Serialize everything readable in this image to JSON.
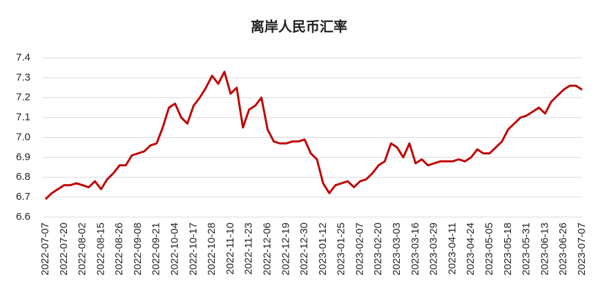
{
  "chart_data": {
    "type": "line",
    "title": "离岸人民币汇率",
    "categories": [
      "2022-07-07",
      null,
      null,
      "2022-07-20",
      null,
      null,
      "2022-08-02",
      null,
      null,
      "2022-08-15",
      null,
      null,
      "2022-08-26",
      null,
      null,
      "2022-09-08",
      null,
      null,
      "2022-09-21",
      null,
      null,
      "2022-10-04",
      null,
      null,
      "2022-10-17",
      null,
      null,
      "2022-10-28",
      null,
      null,
      "2022-11-10",
      null,
      null,
      "2022-11-23",
      null,
      null,
      "2022-12-06",
      null,
      null,
      "2022-12-19",
      null,
      null,
      "2022-12-30",
      null,
      null,
      "2023-01-12",
      null,
      null,
      "2023-01-25",
      null,
      null,
      "2023-02-07",
      null,
      null,
      "2023-02-20",
      null,
      null,
      "2023-03-03",
      null,
      null,
      "2023-03-16",
      null,
      null,
      "2023-03-29",
      null,
      null,
      "2023-04-11",
      null,
      null,
      "2023-04-24",
      null,
      null,
      "2023-05-05",
      null,
      null,
      "2023-05-18",
      null,
      null,
      "2023-05-31",
      null,
      null,
      "2023-06-13",
      null,
      null,
      "2023-06-26",
      null,
      null,
      "2023-07-07"
    ],
    "series": [
      {
        "color": "#c00000",
        "values": [
          6.69,
          6.72,
          6.74,
          6.76,
          6.76,
          6.77,
          6.76,
          6.75,
          6.78,
          6.74,
          6.79,
          6.82,
          6.86,
          6.86,
          6.91,
          6.92,
          6.93,
          6.96,
          6.97,
          7.05,
          7.15,
          7.17,
          7.1,
          7.07,
          7.16,
          7.2,
          7.25,
          7.31,
          7.27,
          7.33,
          7.22,
          7.25,
          7.05,
          7.14,
          7.16,
          7.2,
          7.04,
          6.98,
          6.97,
          6.97,
          6.98,
          6.98,
          6.99,
          6.92,
          6.89,
          6.77,
          6.72,
          6.76,
          6.77,
          6.78,
          6.75,
          6.78,
          6.79,
          6.82,
          6.86,
          6.88,
          6.97,
          6.95,
          6.9,
          6.97,
          6.87,
          6.89,
          6.86,
          6.87,
          6.88,
          6.88,
          6.88,
          6.89,
          6.88,
          6.9,
          6.94,
          6.92,
          6.92,
          6.95,
          6.98,
          7.04,
          7.07,
          7.1,
          7.11,
          7.13,
          7.15,
          7.12,
          7.18,
          7.21,
          7.24,
          7.26,
          7.26,
          7.24
        ]
      }
    ],
    "ylim": [
      6.6,
      7.4
    ],
    "yticks": [
      6.6,
      6.7,
      6.8,
      6.9,
      {
        "value": 7,
        "label": "7.0"
      },
      7.1,
      7.2,
      7.3,
      7.4
    ],
    "grid": true
  }
}
